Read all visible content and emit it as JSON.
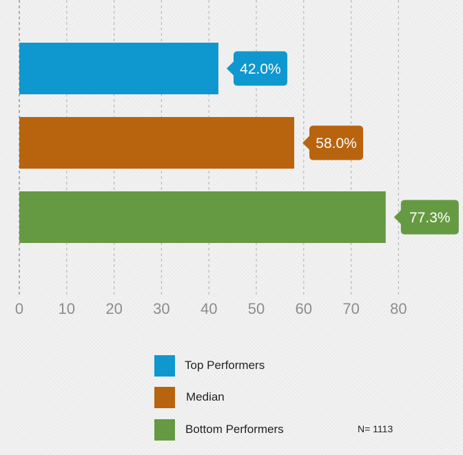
{
  "chart_data": {
    "type": "bar",
    "orientation": "horizontal",
    "categories": [
      "Top Performers",
      "Median",
      "Bottom Performers"
    ],
    "values": [
      42.0,
      58.0,
      77.3
    ],
    "value_labels": [
      "42.0%",
      "58.0%",
      "77.3%"
    ],
    "colors": [
      "#0e98cf",
      "#b8640f",
      "#659a42"
    ],
    "xlim": [
      0,
      80
    ],
    "x_ticks": [
      "0",
      "10",
      "20",
      "30",
      "40",
      "50",
      "60",
      "70",
      "80"
    ],
    "grid": "vertical-dashed",
    "legend_placement": "bottom",
    "title": "",
    "xlabel": "",
    "ylabel": ""
  },
  "legend": {
    "items": [
      {
        "label": "Top Performers",
        "color": "#0e98cf"
      },
      {
        "label": "Median",
        "color": "#b8640f"
      },
      {
        "label": "Bottom Performers",
        "color": "#659a42"
      }
    ]
  },
  "footnote": {
    "sample_size": "N= 1113"
  }
}
